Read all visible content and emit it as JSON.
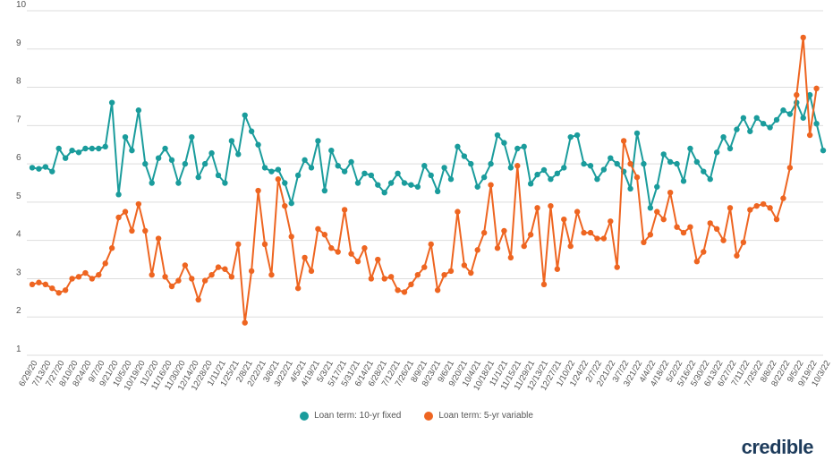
{
  "chart_data": {
    "type": "line",
    "title": "",
    "xlabel": "",
    "ylabel": "",
    "ylim": [
      1,
      10
    ],
    "yticks": [
      1,
      2,
      3,
      4,
      5,
      6,
      7,
      8,
      9,
      10
    ],
    "grid": true,
    "legend_position": "bottom",
    "x_tick_labels": [
      "6/29/20",
      "7/13/20",
      "7/27/20",
      "8/10/20",
      "8/24/20",
      "9/7/20",
      "9/21/20",
      "10/5/20",
      "10/19/20",
      "11/2/20",
      "11/16/20",
      "11/30/20",
      "12/14/20",
      "12/28/20",
      "1/11/21",
      "1/25/21",
      "2/8/21",
      "2/22/21",
      "3/8/21",
      "3/22/21",
      "4/5/21",
      "4/19/21",
      "5/3/21",
      "5/17/21",
      "5/31/21",
      "6/14/21",
      "6/28/21",
      "7/12/21",
      "7/26/21",
      "8/9/21",
      "8/23/21",
      "9/6/21",
      "9/20/21",
      "10/4/21",
      "10/18/21",
      "11/1/21",
      "11/15/21",
      "11/29/21",
      "12/13/21",
      "12/27/21",
      "1/10/22",
      "1/24/22",
      "2/7/22",
      "2/21/22",
      "3/7/22",
      "3/21/22",
      "4/4/22",
      "4/18/22",
      "5/2/22",
      "5/16/22",
      "5/30/22",
      "6/13/22",
      "6/27/22",
      "7/11/22",
      "7/25/22",
      "8/8/22",
      "8/22/22",
      "9/5/22",
      "9/19/22",
      "10/3/22"
    ],
    "series": [
      {
        "name": "Loan term: 10-yr fixed",
        "color": "#1a9c9c",
        "values": [
          5.9,
          5.87,
          5.92,
          5.8,
          6.4,
          6.15,
          6.35,
          6.3,
          6.4,
          6.4,
          6.4,
          6.45,
          7.6,
          5.2,
          6.7,
          6.35,
          7.4,
          6.0,
          5.5,
          6.15,
          6.4,
          6.1,
          5.5,
          6.0,
          6.7,
          5.65,
          6.0,
          6.28,
          5.7,
          5.5,
          6.6,
          6.25,
          7.27,
          6.85,
          6.5,
          5.9,
          5.8,
          5.85,
          5.5,
          4.97,
          5.7,
          6.1,
          5.9,
          6.6,
          5.3,
          6.35,
          5.95,
          5.8,
          6.05,
          5.5,
          5.75,
          5.7,
          5.45,
          5.25,
          5.5,
          5.75,
          5.5,
          5.45,
          5.4,
          5.95,
          5.7,
          5.28,
          5.9,
          5.6,
          6.45,
          6.2,
          6.0,
          5.4,
          5.65,
          6.0,
          6.75,
          6.55,
          5.9,
          6.4,
          6.45,
          5.48,
          5.72,
          5.84,
          5.6,
          5.75,
          5.9,
          6.7,
          6.75,
          6.0,
          5.95,
          5.6,
          5.85,
          6.15,
          6.0,
          5.8,
          5.35,
          6.8,
          6.0,
          4.85,
          5.4,
          6.25,
          6.05,
          6.0,
          5.55,
          6.4,
          6.05,
          5.8,
          5.6,
          6.3,
          6.7,
          6.4,
          6.9,
          7.2,
          6.85,
          7.2,
          7.05,
          6.95,
          7.15,
          7.4,
          7.3,
          7.6,
          7.2,
          7.8,
          7.05,
          6.35
        ]
      },
      {
        "name": "Loan term: 5-yr variable",
        "color": "#ee6521",
        "values": [
          2.85,
          2.9,
          2.85,
          2.75,
          2.63,
          2.7,
          3.0,
          3.05,
          3.15,
          3.0,
          3.1,
          3.4,
          3.8,
          4.6,
          4.75,
          4.25,
          4.95,
          4.25,
          3.1,
          4.05,
          3.05,
          2.8,
          2.95,
          3.35,
          3.0,
          2.45,
          2.95,
          3.1,
          3.3,
          3.25,
          3.05,
          3.9,
          1.85,
          3.2,
          5.3,
          3.9,
          3.1,
          5.6,
          4.9,
          4.1,
          2.75,
          3.55,
          3.2,
          4.3,
          4.15,
          3.8,
          3.7,
          4.8,
          3.65,
          3.45,
          3.8,
          3.0,
          3.5,
          3.0,
          3.05,
          2.7,
          2.65,
          2.85,
          3.1,
          3.3,
          3.9,
          2.7,
          3.1,
          3.2,
          4.75,
          3.35,
          3.15,
          3.75,
          4.2,
          5.45,
          3.8,
          4.25,
          3.55,
          5.95,
          3.85,
          4.15,
          4.85,
          2.85,
          4.9,
          3.25,
          4.55,
          3.85,
          4.75,
          4.2,
          4.2,
          4.05,
          4.05,
          4.5,
          3.3,
          6.6,
          6.0,
          5.65,
          3.95,
          4.15,
          4.75,
          4.55,
          5.25,
          4.35,
          4.2,
          4.35,
          3.45,
          3.7,
          4.45,
          4.3,
          4.0,
          4.85,
          3.6,
          3.95,
          4.8,
          4.9,
          4.95,
          4.85,
          4.55,
          5.1,
          5.9,
          7.8,
          9.3,
          6.75,
          7.97
        ]
      }
    ]
  },
  "legend": [
    {
      "label": "Loan term: 10-yr fixed",
      "color": "#1a9c9c"
    },
    {
      "label": "Loan term: 5-yr variable",
      "color": "#ee6521"
    }
  ],
  "brand": {
    "logo_text": "credible"
  }
}
